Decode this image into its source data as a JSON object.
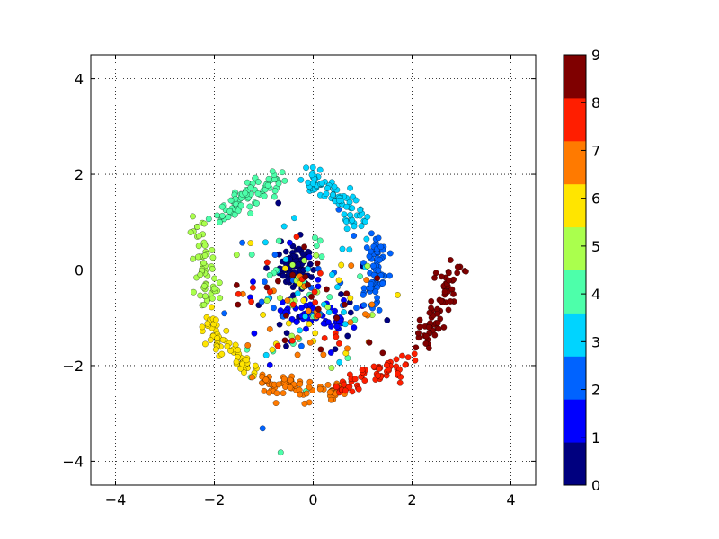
{
  "chart_data": {
    "type": "scatter",
    "title": "",
    "xlabel": "",
    "ylabel": "",
    "xlim": [
      -4.5,
      4.5
    ],
    "ylim": [
      -4.5,
      4.5
    ],
    "x_ticks": [
      -4,
      -2,
      0,
      2,
      4
    ],
    "y_ticks": [
      -4,
      -2,
      0,
      2,
      4
    ],
    "x_tick_labels": [
      "−4",
      "−2",
      "0",
      "2",
      "4"
    ],
    "y_tick_labels": [
      "−4",
      "−2",
      "0",
      "2",
      "4"
    ],
    "grid": true,
    "colormap": "jet",
    "colorbar": {
      "range": [
        0,
        9
      ],
      "ticks": [
        0,
        1,
        2,
        3,
        4,
        5,
        6,
        7,
        8,
        9
      ],
      "tick_labels": [
        "0",
        "1",
        "2",
        "3",
        "4",
        "5",
        "6",
        "7",
        "8",
        "9"
      ],
      "colors": [
        "#00007f",
        "#0000ff",
        "#0063ff",
        "#00d4ff",
        "#4dffaa",
        "#aaff4d",
        "#ffe500",
        "#ff7a00",
        "#ff1e00",
        "#7f0000"
      ]
    },
    "classes": [
      {
        "label": "0",
        "color": "#00007f",
        "center": [
          -0.35,
          0.05
        ],
        "spread": [
          0.3,
          0.4
        ],
        "count": 70
      },
      {
        "label": "1",
        "color": "#0000ff",
        "arc": [
          [
            -0.65,
            -0.8
          ],
          [
            0.0,
            -1.0
          ],
          [
            0.6,
            -1.1
          ]
        ],
        "count": 50
      },
      {
        "label": "2",
        "color": "#0063ff",
        "arc": [
          [
            1.2,
            0.6
          ],
          [
            1.4,
            0.0
          ],
          [
            1.2,
            -0.8
          ]
        ],
        "count": 70
      },
      {
        "label": "3",
        "color": "#00d4ff",
        "arc": [
          [
            -0.1,
            1.9
          ],
          [
            0.5,
            1.6
          ],
          [
            1.0,
            1.0
          ]
        ],
        "count": 80
      },
      {
        "label": "4",
        "color": "#4dffaa",
        "arc": [
          [
            -1.9,
            1.1
          ],
          [
            -1.3,
            1.7
          ],
          [
            -0.6,
            1.9
          ]
        ],
        "count": 80
      },
      {
        "label": "5",
        "color": "#aaff4d",
        "arc": [
          [
            -2.25,
            1.0
          ],
          [
            -2.35,
            0.0
          ],
          [
            -2.1,
            -0.6
          ]
        ],
        "count": 60
      },
      {
        "label": "6",
        "color": "#ffe500",
        "arc": [
          [
            -2.2,
            -1.0
          ],
          [
            -1.8,
            -1.6
          ],
          [
            -1.2,
            -2.1
          ]
        ],
        "count": 60
      },
      {
        "label": "7",
        "color": "#ff7a00",
        "arc": [
          [
            -1.1,
            -2.3
          ],
          [
            -0.2,
            -2.55
          ],
          [
            0.6,
            -2.5
          ]
        ],
        "count": 75
      },
      {
        "label": "8",
        "color": "#ff1e00",
        "arc": [
          [
            0.5,
            -2.45
          ],
          [
            1.2,
            -2.35
          ],
          [
            2.0,
            -1.8
          ]
        ],
        "count": 60
      },
      {
        "label": "9",
        "color": "#7f0000",
        "arc": [
          [
            2.1,
            -1.6
          ],
          [
            2.7,
            -0.8
          ],
          [
            2.85,
            0.1
          ]
        ],
        "count": 70
      }
    ]
  }
}
